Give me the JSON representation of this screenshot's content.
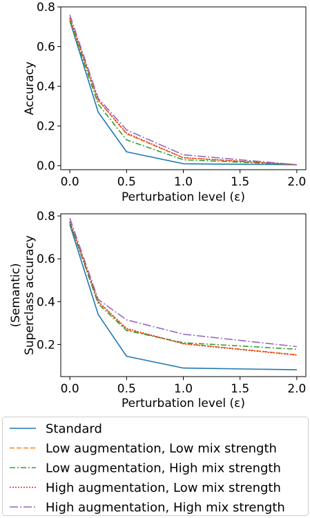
{
  "chart_data": [
    {
      "type": "line",
      "xlabel": "Perturbation level (ε)",
      "ylabel": "Accuracy",
      "xlim": [
        -0.08,
        2.08
      ],
      "ylim": [
        -0.02,
        0.8
      ],
      "xticks": [
        0.0,
        0.5,
        1.0,
        1.5,
        2.0
      ],
      "xtick_labels": [
        "0.0",
        "0.5",
        "1.0",
        "1.5",
        "2.0"
      ],
      "yticks": [
        0.0,
        0.2,
        0.4,
        0.6,
        0.8
      ],
      "ytick_labels": [
        "0.0",
        "0.2",
        "0.4",
        "0.6",
        "0.8"
      ],
      "grid": false,
      "x": [
        0.0,
        0.25,
        0.5,
        1.0,
        2.0
      ],
      "series": [
        {
          "name": "Standard",
          "values": [
            0.73,
            0.27,
            0.07,
            0.01,
            0.005
          ],
          "color": "#1f77b4",
          "dash": "solid"
        },
        {
          "name": "Low augmentation, Low mix strength",
          "values": [
            0.74,
            0.33,
            0.16,
            0.04,
            0.005
          ],
          "color": "#ff7f0e",
          "dash": "dashed"
        },
        {
          "name": "Low augmentation, High mix strength",
          "values": [
            0.73,
            0.31,
            0.13,
            0.03,
            0.005
          ],
          "color": "#2ca02c",
          "dash": "dashdot"
        },
        {
          "name": "High augmentation, Low mix strength",
          "values": [
            0.745,
            0.33,
            0.165,
            0.04,
            0.005
          ],
          "color": "#d62728",
          "dash": "dotted"
        },
        {
          "name": "High augmentation, High mix strength",
          "values": [
            0.76,
            0.34,
            0.18,
            0.055,
            0.005
          ],
          "color": "#9467bd",
          "dash": "longdashdot"
        }
      ]
    },
    {
      "type": "line",
      "xlabel": "Perturbation level (ε)",
      "ylabel_lines": [
        "(Semantic)",
        "Superclass accuracy"
      ],
      "xlim": [
        -0.08,
        2.08
      ],
      "ylim": [
        0.05,
        0.81
      ],
      "xticks": [
        0.0,
        0.5,
        1.0,
        1.5,
        2.0
      ],
      "xtick_labels": [
        "0.0",
        "0.5",
        "1.0",
        "1.5",
        "2.0"
      ],
      "yticks": [
        0.2,
        0.4,
        0.6,
        0.8
      ],
      "ytick_labels": [
        "0.2",
        "0.4",
        "0.6",
        "0.8"
      ],
      "grid": false,
      "x": [
        0.0,
        0.25,
        0.5,
        1.0,
        2.0
      ],
      "series": [
        {
          "name": "Standard",
          "values": [
            0.76,
            0.34,
            0.145,
            0.09,
            0.082
          ],
          "color": "#1f77b4",
          "dash": "solid"
        },
        {
          "name": "Low augmentation, Low mix strength",
          "values": [
            0.77,
            0.4,
            0.27,
            0.205,
            0.152
          ],
          "color": "#ff7f0e",
          "dash": "dashed"
        },
        {
          "name": "Low augmentation, High mix strength",
          "values": [
            0.77,
            0.39,
            0.265,
            0.208,
            0.178
          ],
          "color": "#2ca02c",
          "dash": "dashdot"
        },
        {
          "name": "High augmentation, Low mix strength",
          "values": [
            0.775,
            0.4,
            0.275,
            0.203,
            0.15
          ],
          "color": "#d62728",
          "dash": "dotted"
        },
        {
          "name": "High augmentation, High mix strength",
          "values": [
            0.79,
            0.41,
            0.315,
            0.248,
            0.19
          ],
          "color": "#9467bd",
          "dash": "longdashdot"
        }
      ]
    }
  ],
  "legend": {
    "placement": "bottom",
    "entries": [
      {
        "label": "Standard",
        "color": "#1f77b4",
        "dash": "solid"
      },
      {
        "label": "Low augmentation, Low mix strength",
        "color": "#ff7f0e",
        "dash": "dashed"
      },
      {
        "label": "Low augmentation, High mix strength",
        "color": "#2ca02c",
        "dash": "dashdot"
      },
      {
        "label": "High augmentation, Low mix strength",
        "color": "#d62728",
        "dash": "dotted"
      },
      {
        "label": "High augmentation, High mix strength",
        "color": "#9467bd",
        "dash": "longdashdot"
      }
    ]
  }
}
